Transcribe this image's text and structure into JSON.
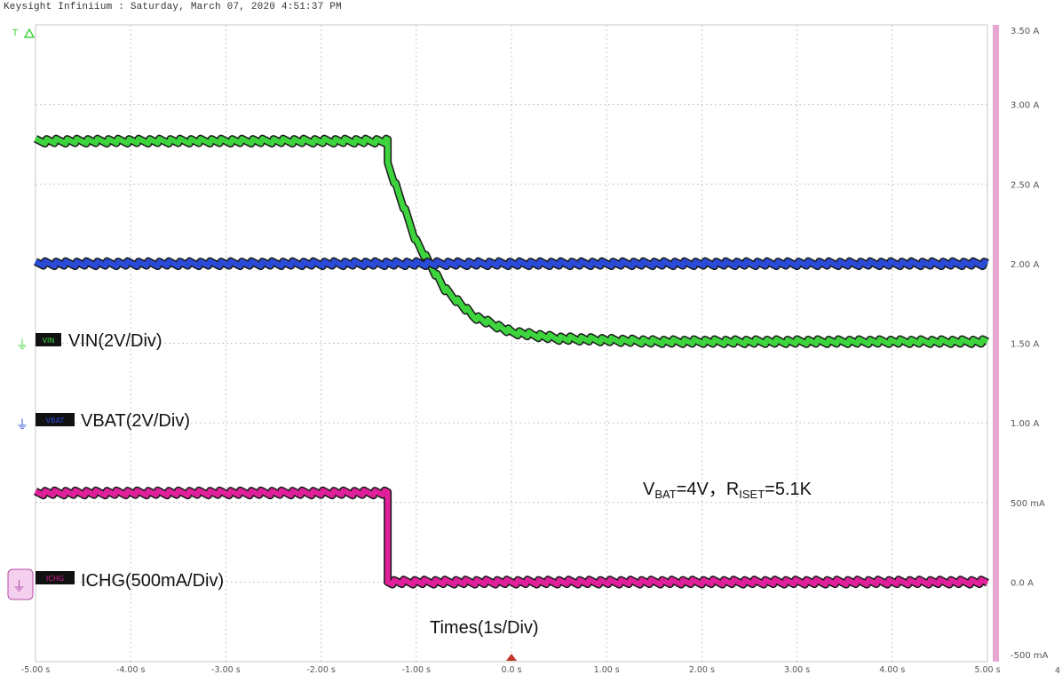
{
  "header": {
    "title": "Keysight Infiniium : Saturday, March 07, 2020 4:51:37 PM"
  },
  "trigger_marker": "T",
  "channel_labels": {
    "vin": {
      "tag": "VIN",
      "text": "VIN(2V/Div)"
    },
    "vbat": {
      "tag": "VBAT",
      "text": "VBAT(2V/Div)"
    },
    "ichg": {
      "tag": "ICHG",
      "text": "ICHG(500mA/Div)"
    }
  },
  "annotation": {
    "prefix": "V",
    "sub1": "BAT",
    "mid": "=4V，R",
    "sub2": "ISET",
    "suffix": "=5.1K"
  },
  "time_label": "Times(1s/Div)",
  "chart_data": {
    "type": "line",
    "title": "",
    "xlabel": "Times(1s/Div)",
    "ylabel": "",
    "xlim": [
      -5,
      5
    ],
    "ylim": [
      -0.5,
      3.5
    ],
    "grid": true,
    "x_ticks": [
      "-5.00 s",
      "-4.00 s",
      "-3.00 s",
      "-2.00 s",
      "-1.00 s",
      "0.0 s",
      "1.00 s",
      "2.00 s",
      "3.00 s",
      "4.00 s",
      "5.00 s"
    ],
    "y_ticks": [
      {
        "v": 3.5,
        "label": "3.50 A"
      },
      {
        "v": 3.0,
        "label": "3.00 A"
      },
      {
        "v": 2.5,
        "label": "2.50 A"
      },
      {
        "v": 2.0,
        "label": "2.00 A"
      },
      {
        "v": 1.5,
        "label": "1.50 A"
      },
      {
        "v": 1.0,
        "label": "1.00 A"
      },
      {
        "v": 0.5,
        "label": "500 mA"
      },
      {
        "v": 0.0,
        "label": "0.0 A"
      },
      {
        "v": -0.5,
        "label": "-500 mA"
      }
    ],
    "corner_label": "4",
    "series": [
      {
        "name": "VIN(2V/Div)",
        "color": "#3ed43e",
        "x": [
          -5,
          -1.3,
          -1.3,
          -1.0,
          -0.7,
          -0.4,
          0.0,
          0.5,
          1.0,
          1.5,
          2.0,
          3.0,
          4.0,
          5.0
        ],
        "y": [
          2.77,
          2.77,
          2.63,
          2.14,
          1.84,
          1.67,
          1.57,
          1.53,
          1.52,
          1.51,
          1.51,
          1.51,
          1.51,
          1.51
        ]
      },
      {
        "name": "VBAT(2V/Div)",
        "color": "#2a4bd8",
        "x": [
          -5,
          5
        ],
        "y": [
          2.0,
          2.0
        ]
      },
      {
        "name": "ICHG(500mA/Div)",
        "color": "#e0209a",
        "x": [
          -5,
          -1.3,
          -1.3,
          5
        ],
        "y": [
          0.56,
          0.56,
          0.0,
          0.0
        ]
      }
    ]
  }
}
